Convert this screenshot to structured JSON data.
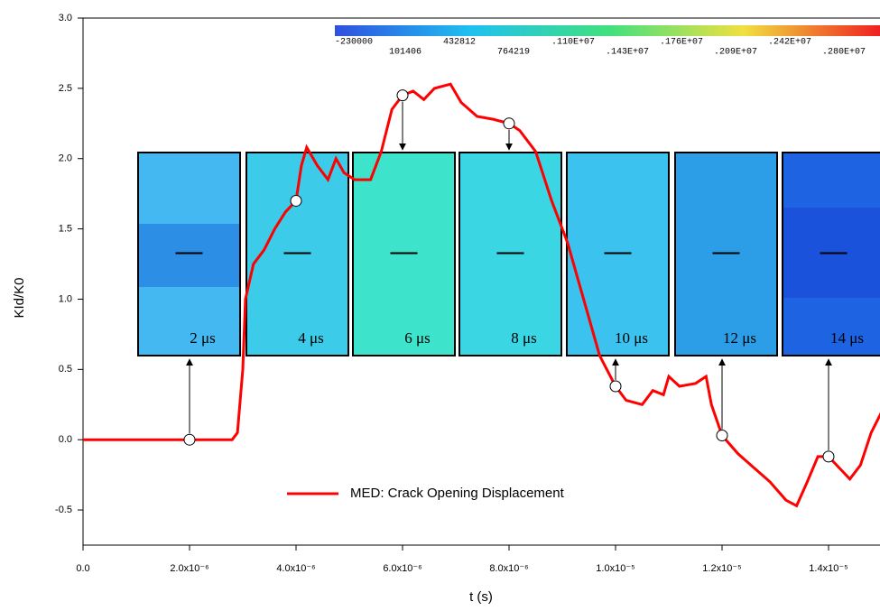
{
  "chart_data": {
    "type": "line",
    "x_label": "t (s)",
    "y_label": "KId/K0",
    "xlim": [
      0,
      1.5e-05
    ],
    "ylim": [
      -0.75,
      3.0
    ],
    "xticks": [
      {
        "value": 0,
        "label": "0.0"
      },
      {
        "value": 2e-06,
        "label": "2.0x10⁻⁶"
      },
      {
        "value": 4e-06,
        "label": "4.0x10⁻⁶"
      },
      {
        "value": 6e-06,
        "label": "6.0x10⁻⁶"
      },
      {
        "value": 8e-06,
        "label": "8.0x10⁻⁶"
      },
      {
        "value": 1e-05,
        "label": "1.0x10⁻⁵"
      },
      {
        "value": 1.2e-05,
        "label": "1.2x10⁻⁵"
      },
      {
        "value": 1.4e-05,
        "label": "1.4x10⁻⁵"
      }
    ],
    "yticks": [
      -0.5,
      {
        "value": 0,
        "label": "0.0"
      },
      0.5,
      {
        "value": 1,
        "label": "1.0"
      },
      1.5,
      {
        "value": 2,
        "label": "2.0"
      },
      2.5,
      {
        "value": 3,
        "label": "3.0"
      }
    ],
    "series": [
      {
        "name": "MED: Crack Opening Displacement",
        "color": "#ff0000",
        "x": [
          0,
          1e-06,
          2e-06,
          2.8e-06,
          2.9e-06,
          3e-06,
          3.05e-06,
          3.2e-06,
          3.4e-06,
          3.6e-06,
          3.8e-06,
          4e-06,
          4.1e-06,
          4.2e-06,
          4.4e-06,
          4.6e-06,
          4.75e-06,
          4.9e-06,
          5.1e-06,
          5.4e-06,
          5.6e-06,
          5.8e-06,
          6e-06,
          6.2e-06,
          6.4e-06,
          6.6e-06,
          6.9e-06,
          7.1e-06,
          7.4e-06,
          7.7e-06,
          8e-06,
          8.2e-06,
          8.5e-06,
          8.8e-06,
          9.1e-06,
          9.4e-06,
          9.7e-06,
          1e-05,
          1.02e-05,
          1.05e-05,
          1.07e-05,
          1.09e-05,
          1.1e-05,
          1.12e-05,
          1.15e-05,
          1.17e-05,
          1.18e-05,
          1.2e-05,
          1.23e-05,
          1.26e-05,
          1.29e-05,
          1.32e-05,
          1.34e-05,
          1.36e-05,
          1.38e-05,
          1.4e-05,
          1.42e-05,
          1.44e-05,
          1.46e-05,
          1.48e-05,
          1.5e-05
        ],
        "values": [
          0,
          0,
          0,
          0,
          0.05,
          0.5,
          1.0,
          1.25,
          1.35,
          1.5,
          1.62,
          1.7,
          1.95,
          2.08,
          1.95,
          1.85,
          2.0,
          1.9,
          1.85,
          1.85,
          2.05,
          2.35,
          2.45,
          2.48,
          2.42,
          2.5,
          2.53,
          2.4,
          2.3,
          2.28,
          2.25,
          2.2,
          2.05,
          1.7,
          1.4,
          1.0,
          0.6,
          0.38,
          0.28,
          0.25,
          0.35,
          0.32,
          0.45,
          0.38,
          0.4,
          0.45,
          0.25,
          0.03,
          -0.1,
          -0.2,
          -0.3,
          -0.43,
          -0.47,
          -0.3,
          -0.12,
          -0.12,
          -0.2,
          -0.28,
          -0.18,
          0.05,
          0.2
        ]
      }
    ],
    "snapshots": [
      {
        "label": "2 μs",
        "t": 2e-06,
        "value": 0
      },
      {
        "label": "4 μs",
        "t": 4e-06,
        "value": 1.7
      },
      {
        "label": "6 μs",
        "t": 6e-06,
        "value": 2.45
      },
      {
        "label": "8 μs",
        "t": 8e-06,
        "value": 2.25
      },
      {
        "label": "10 μs",
        "t": 1e-05,
        "value": 0.38
      },
      {
        "label": "12 μs",
        "t": 1.2e-05,
        "value": 0.03
      },
      {
        "label": "14 μs",
        "t": 1.4e-05,
        "value": -0.12
      }
    ],
    "colorbar_labels": [
      "-230000",
      "101406",
      "432812",
      "764219",
      ".110E+07",
      ".143E+07",
      ".176E+07",
      ".209E+07",
      ".242E+07",
      ".280E+07"
    ]
  }
}
